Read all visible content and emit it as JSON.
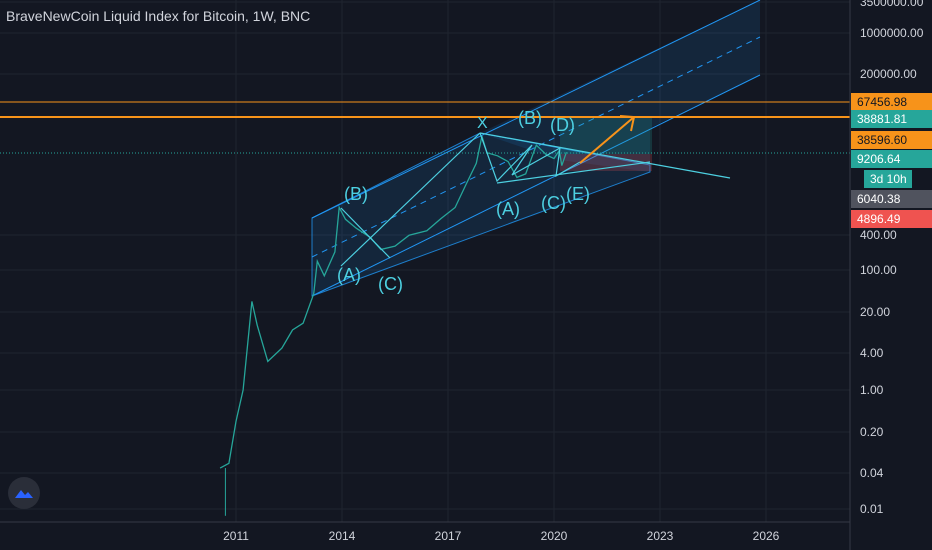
{
  "chart_data": {
    "type": "candlestick",
    "title": "BraveNewCoin Liquid Index for Bitcoin, 1W, BNC",
    "y_scale": "log",
    "x_ticks": [
      "2011",
      "2014",
      "2017",
      "2020",
      "2023",
      "2026"
    ],
    "y_ticks": [
      "3500000.00",
      "1000000.00",
      "200000.00",
      "400.00",
      "100.00",
      "20.00",
      "4.00",
      "1.00",
      "0.20",
      "0.04",
      "0.01"
    ],
    "price_labels": [
      {
        "text": "67456.98",
        "color": "#f7931a",
        "text_color": "#131722"
      },
      {
        "text": "38881.81",
        "color": "#26a69a",
        "text_color": "#ffffff"
      },
      {
        "text": "38596.60",
        "color": "#f7931a",
        "text_color": "#131722"
      },
      {
        "text": "9206.64",
        "color": "#26a69a",
        "text_color": "#ffffff"
      },
      {
        "text": "3d 10h",
        "color": "#26a69a",
        "text_color": "#ffffff"
      },
      {
        "text": "6040.38",
        "color": "#50535e",
        "text_color": "#ffffff"
      },
      {
        "text": "4896.49",
        "color": "#ef5350",
        "text_color": "#ffffff"
      }
    ],
    "price_path": [
      [
        "2010.55",
        0.05
      ],
      [
        "2010.8",
        0.06
      ],
      [
        "2011.0",
        0.3
      ],
      [
        "2011.2",
        1.0
      ],
      [
        "2011.45",
        30
      ],
      [
        "2011.6",
        12
      ],
      [
        "2011.9",
        3
      ],
      [
        "2012.3",
        5
      ],
      [
        "2012.6",
        10
      ],
      [
        "2012.9",
        13
      ],
      [
        "2013.2",
        40
      ],
      [
        "2013.3",
        140
      ],
      [
        "2013.5",
        80
      ],
      [
        "2013.8",
        200
      ],
      [
        "2013.92",
        1100
      ],
      [
        "2014.1",
        700
      ],
      [
        "2014.4",
        500
      ],
      [
        "2014.8",
        350
      ],
      [
        "2015.1",
        220
      ],
      [
        "2015.5",
        250
      ],
      [
        "2015.9",
        380
      ],
      [
        "2016.4",
        450
      ],
      [
        "2016.8",
        720
      ],
      [
        "2017.2",
        1100
      ],
      [
        "2017.5",
        2600
      ],
      [
        "2017.8",
        6000
      ],
      [
        "2017.96",
        17000
      ],
      [
        "2018.1",
        9000
      ],
      [
        "2018.4",
        8000
      ],
      [
        "2018.7",
        6400
      ],
      [
        "2018.95",
        3500
      ],
      [
        "2019.2",
        4000
      ],
      [
        "2019.5",
        12000
      ],
      [
        "2019.8",
        8200
      ],
      [
        "2020.0",
        7200
      ],
      [
        "2020.15",
        9800
      ],
      [
        "2020.22",
        5500
      ],
      [
        "2020.35",
        9200
      ]
    ],
    "annotations": [
      {
        "text": "X"
      },
      {
        "text": "(B)"
      },
      {
        "text": "(D)"
      },
      {
        "text": "(B)"
      },
      {
        "text": "(A)"
      },
      {
        "text": "(C)"
      },
      {
        "text": "(E)"
      },
      {
        "text": "(A)"
      },
      {
        "text": "(C)"
      }
    ],
    "colors": {
      "background": "#131722",
      "grid": "#1f2430",
      "channel": "#2196f3",
      "orange": "#f7931a",
      "text": "#d1d4dc"
    }
  }
}
